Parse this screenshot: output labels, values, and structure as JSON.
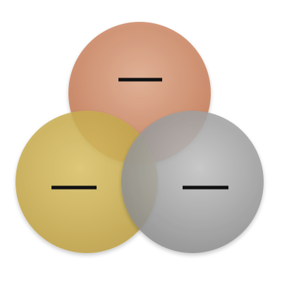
{
  "diagram": {
    "type": "venn",
    "circles": [
      {
        "id": "top",
        "label": "",
        "bullet_placeholder": "dash",
        "color_light": "#dfa98a",
        "color_dark": "#c27550"
      },
      {
        "id": "left",
        "label": "",
        "bullet_placeholder": "dash",
        "color_light": "#dcc468",
        "color_dark": "#bea043"
      },
      {
        "id": "right",
        "label": "",
        "bullet_placeholder": "dash",
        "color_light": "#c4c4c4",
        "color_dark": "#8e8e8e"
      }
    ],
    "fill_opacity": 0.85,
    "dash_color": "#111111"
  }
}
